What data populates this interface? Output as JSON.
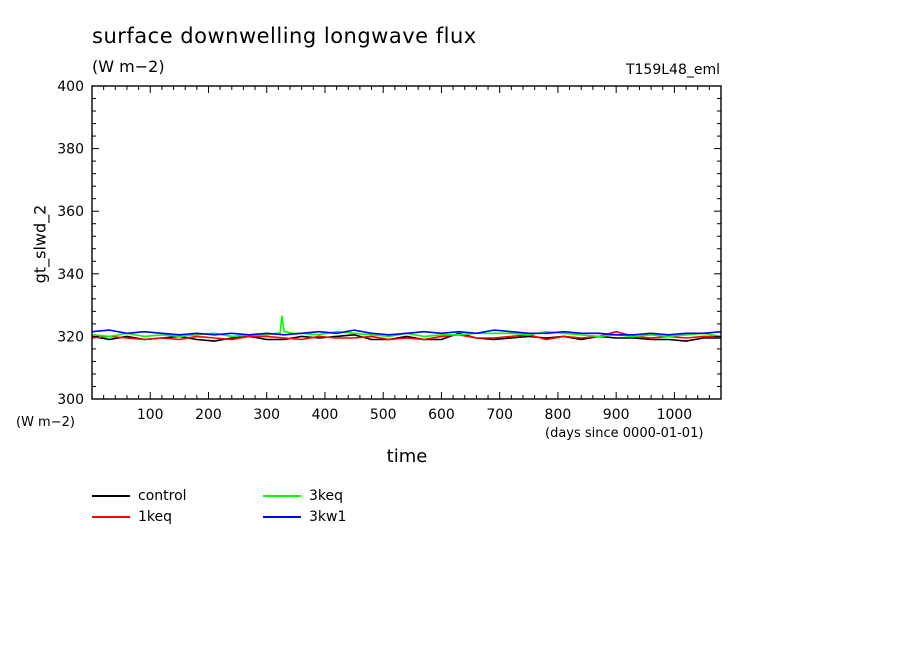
{
  "chart_data": {
    "type": "line",
    "title": "surface downwelling longwave flux",
    "subtitle": "(W m−2)",
    "run_label": "T159L48_eml",
    "ylabel": "gt_slwd_2",
    "yunit": "(W m−2)",
    "xlabel": "time",
    "xunit": "(days since 0000-01-01)",
    "xlim": [
      0,
      1080
    ],
    "ylim": [
      300,
      400
    ],
    "x_ticks": [
      100,
      200,
      300,
      400,
      500,
      600,
      700,
      800,
      900,
      1000
    ],
    "y_ticks": [
      300,
      320,
      340,
      360,
      380,
      400
    ],
    "grid": false,
    "legend_position": "bottom-left",
    "series": [
      {
        "name": "control",
        "color": "#000000",
        "x": [
          0,
          30,
          60,
          90,
          120,
          150,
          180,
          210,
          240,
          270,
          300,
          330,
          360,
          390,
          420,
          450,
          480,
          510,
          540,
          570,
          600,
          630,
          660,
          690,
          720,
          750,
          780,
          810,
          840,
          870,
          900,
          930,
          960,
          990,
          1020,
          1050,
          1080
        ],
        "y": [
          320.0,
          319.0,
          320.0,
          319.0,
          319.5,
          320.0,
          319.0,
          318.5,
          319.5,
          320.0,
          319.0,
          319.0,
          320.0,
          319.5,
          320.0,
          320.5,
          319.0,
          319.0,
          320.0,
          319.0,
          319.0,
          321.0,
          319.5,
          319.0,
          319.5,
          320.0,
          319.5,
          320.0,
          319.0,
          320.0,
          319.5,
          319.5,
          319.0,
          319.0,
          318.5,
          319.5,
          319.5
        ]
      },
      {
        "name": "1keq",
        "color": "#ff0000",
        "x": [
          0,
          30,
          60,
          90,
          120,
          150,
          180,
          210,
          240,
          270,
          300,
          330,
          360,
          390,
          420,
          450,
          480,
          510,
          540,
          570,
          600,
          630,
          660,
          690,
          720,
          750,
          780,
          810,
          840,
          870,
          900,
          930,
          960,
          990,
          1020,
          1050,
          1080
        ],
        "y": [
          319.5,
          320.0,
          319.5,
          319.0,
          319.5,
          319.0,
          320.0,
          319.5,
          319.0,
          320.0,
          320.0,
          319.5,
          319.0,
          320.0,
          319.5,
          319.5,
          320.0,
          319.0,
          319.5,
          319.0,
          320.0,
          320.5,
          319.5,
          319.5,
          320.0,
          320.5,
          319.0,
          320.0,
          319.5,
          320.0,
          321.5,
          320.0,
          319.5,
          320.0,
          319.5,
          320.0,
          320.0
        ]
      },
      {
        "name": "3keq",
        "color": "#00ff00",
        "x": [
          0,
          30,
          60,
          90,
          120,
          150,
          180,
          210,
          240,
          270,
          300,
          315,
          323,
          326,
          330,
          345,
          360,
          390,
          420,
          450,
          480,
          510,
          540,
          570,
          600,
          630,
          660,
          690,
          720,
          750,
          780,
          810,
          840,
          870,
          900,
          930,
          960,
          990,
          1020,
          1050,
          1080
        ],
        "y": [
          320.5,
          320.0,
          321.0,
          320.0,
          320.5,
          320.0,
          320.5,
          321.0,
          320.0,
          320.5,
          320.5,
          321.0,
          321.0,
          326.5,
          321.5,
          321.0,
          321.0,
          320.5,
          321.5,
          321.0,
          320.5,
          320.0,
          321.0,
          320.0,
          320.5,
          320.5,
          321.0,
          321.0,
          321.0,
          320.5,
          321.5,
          321.0,
          320.5,
          320.0,
          320.5,
          320.0,
          320.5,
          320.0,
          320.5,
          321.0,
          320.0
        ]
      },
      {
        "name": "3kw1",
        "color": "#0000ff",
        "x": [
          0,
          30,
          60,
          90,
          120,
          150,
          180,
          210,
          240,
          270,
          300,
          330,
          360,
          390,
          420,
          450,
          480,
          510,
          540,
          570,
          600,
          630,
          660,
          690,
          720,
          750,
          780,
          810,
          840,
          870,
          900,
          930,
          960,
          990,
          1020,
          1050,
          1080
        ],
        "y": [
          321.5,
          322.0,
          321.0,
          321.5,
          321.0,
          320.5,
          321.0,
          320.5,
          321.0,
          320.5,
          321.0,
          320.5,
          321.0,
          321.5,
          321.0,
          322.0,
          321.0,
          320.5,
          321.0,
          321.5,
          321.0,
          321.5,
          321.0,
          322.0,
          321.5,
          321.0,
          321.0,
          321.5,
          321.0,
          321.0,
          320.5,
          320.5,
          321.0,
          320.5,
          321.0,
          321.0,
          321.5
        ]
      }
    ]
  }
}
